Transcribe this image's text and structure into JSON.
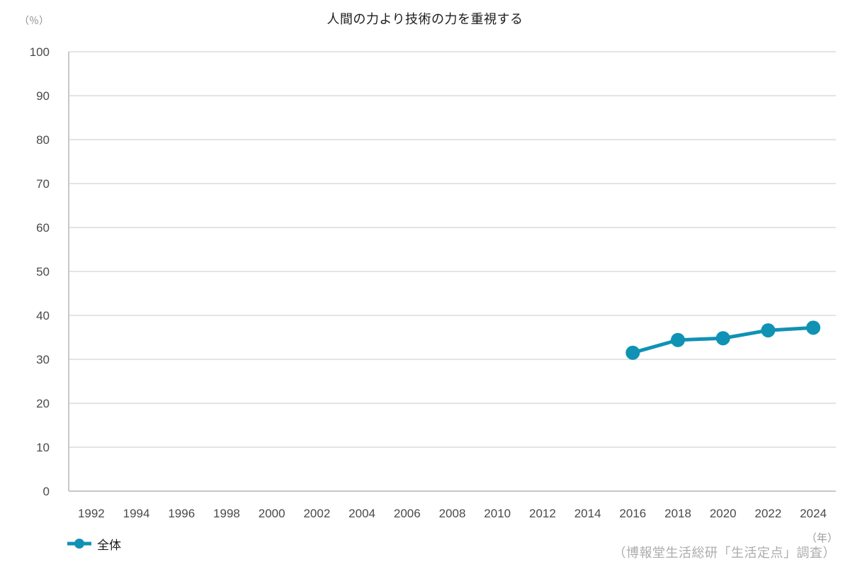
{
  "chart_data": {
    "type": "line",
    "title": "人間の力より技術の力を重視する",
    "ylabel_unit": "（％）",
    "xlabel_unit": "（年）",
    "source": "（博報堂生活総研「生活定点」調査）",
    "grid": true,
    "legend_position": "bottom-left",
    "ylim": [
      0,
      100
    ],
    "y_tick_labels": [
      0,
      10,
      20,
      30,
      40,
      50,
      60,
      70,
      80,
      90,
      100
    ],
    "x_tick_labels": [
      "1992",
      "1994",
      "1996",
      "1998",
      "2000",
      "2002",
      "2004",
      "2006",
      "2008",
      "2010",
      "2012",
      "2014",
      "2016",
      "2018",
      "2020",
      "2022",
      "2024"
    ],
    "series": [
      {
        "name": "全体",
        "color": "#1092b4",
        "x": [
          2016,
          2018,
          2020,
          2022,
          2024
        ],
        "values": [
          31.5,
          34.4,
          34.8,
          36.6,
          37.2
        ]
      }
    ]
  }
}
